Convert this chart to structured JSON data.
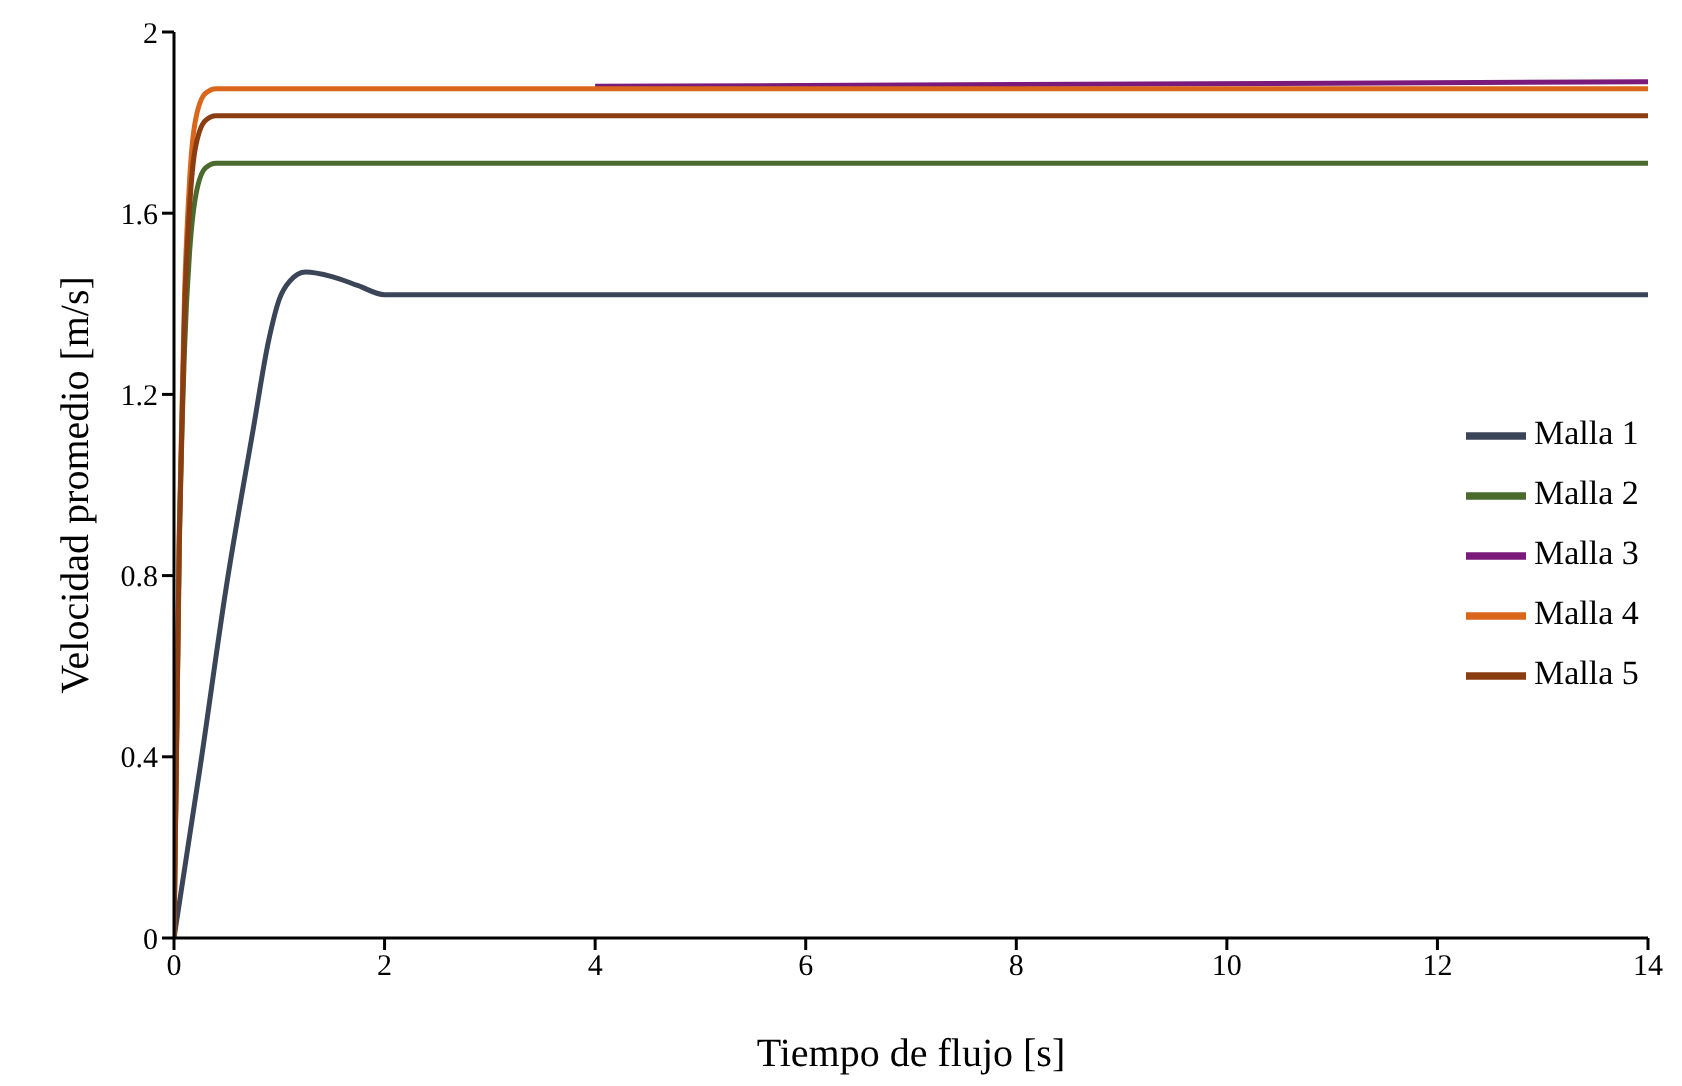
{
  "chart_data": {
    "type": "line",
    "xlabel": "Tiempo de flujo [s]",
    "ylabel": "Velocidad  promedio [m/s]",
    "xlim": [
      0,
      14
    ],
    "xticks": [
      0,
      2,
      4,
      6,
      8,
      10,
      12,
      14
    ],
    "ylim": [
      0,
      2
    ],
    "yticks": [
      0,
      0.4,
      0.8,
      1.2,
      1.6,
      2
    ],
    "grid": false,
    "legend": "right",
    "marker": "none",
    "line_style": "solid",
    "series": [
      {
        "name": "Malla 1",
        "color": "#3b4558",
        "x": [
          0,
          0.25,
          0.5,
          0.75,
          0.9,
          1.0,
          1.1,
          1.25,
          1.5,
          1.75,
          2,
          14
        ],
        "values": [
          0,
          0.38,
          0.78,
          1.12,
          1.32,
          1.41,
          1.45,
          1.47,
          1.46,
          1.44,
          1.42,
          1.42
        ]
      },
      {
        "name": "Malla 2",
        "color": "#4a6a2e",
        "x": [
          0,
          0.05,
          0.1,
          0.15,
          0.2,
          0.3,
          0.4,
          14
        ],
        "values": [
          0,
          0.85,
          1.3,
          1.52,
          1.63,
          1.7,
          1.71,
          1.71
        ]
      },
      {
        "name": "Malla 3",
        "color": "#7a1a7a",
        "x": [
          4,
          8,
          14
        ],
        "values": [
          1.88,
          1.884,
          1.89
        ]
      },
      {
        "name": "Malla 4",
        "color": "#d9661a",
        "x": [
          0,
          0.05,
          0.1,
          0.15,
          0.2,
          0.3,
          0.4,
          14
        ],
        "values": [
          0,
          0.9,
          1.42,
          1.68,
          1.8,
          1.865,
          1.875,
          1.875
        ]
      },
      {
        "name": "Malla 5",
        "color": "#8b3d12",
        "x": [
          0,
          0.05,
          0.1,
          0.15,
          0.2,
          0.3,
          0.4,
          14
        ],
        "values": [
          0,
          0.88,
          1.38,
          1.62,
          1.74,
          1.805,
          1.815,
          1.815
        ]
      }
    ]
  }
}
